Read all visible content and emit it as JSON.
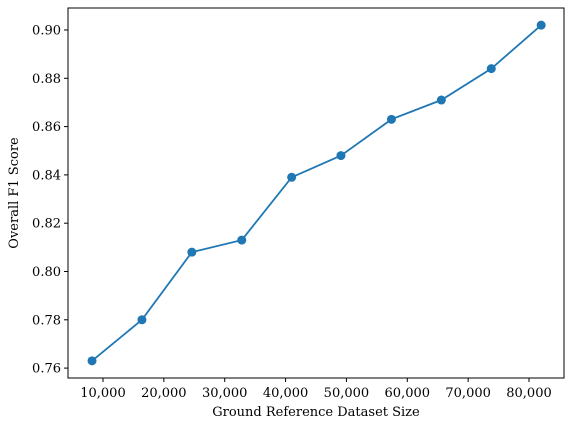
{
  "chart_data": {
    "type": "line",
    "x_label": "Ground Reference Dataset Size",
    "y_label": "Overall F1 Score",
    "x": [
      8200,
      16400,
      24600,
      32800,
      41000,
      49100,
      57400,
      65600,
      73800,
      82000
    ],
    "series": [
      {
        "name": "Overall F1 Score",
        "color": "#1f77b4",
        "values": [
          0.763,
          0.78,
          0.808,
          0.813,
          0.839,
          0.848,
          0.863,
          0.871,
          0.884,
          0.902
        ]
      }
    ],
    "xlim": [
      4250,
      85750
    ],
    "ylim": [
      0.7559,
      0.9091
    ],
    "xticks": [
      {
        "value": 10000,
        "label": "10,000"
      },
      {
        "value": 20000,
        "label": "20,000"
      },
      {
        "value": 30000,
        "label": "30,000"
      },
      {
        "value": 40000,
        "label": "40,000"
      },
      {
        "value": 50000,
        "label": "50,000"
      },
      {
        "value": 60000,
        "label": "60,000"
      },
      {
        "value": 70000,
        "label": "70,000"
      },
      {
        "value": 80000,
        "label": "80,000"
      }
    ],
    "yticks": [
      0.76,
      0.78,
      {
        "value": 0.8,
        "label": "0.80"
      },
      0.82,
      0.84,
      0.86,
      0.88,
      {
        "value": 0.9,
        "label": "0.90"
      }
    ],
    "markers": true
  }
}
